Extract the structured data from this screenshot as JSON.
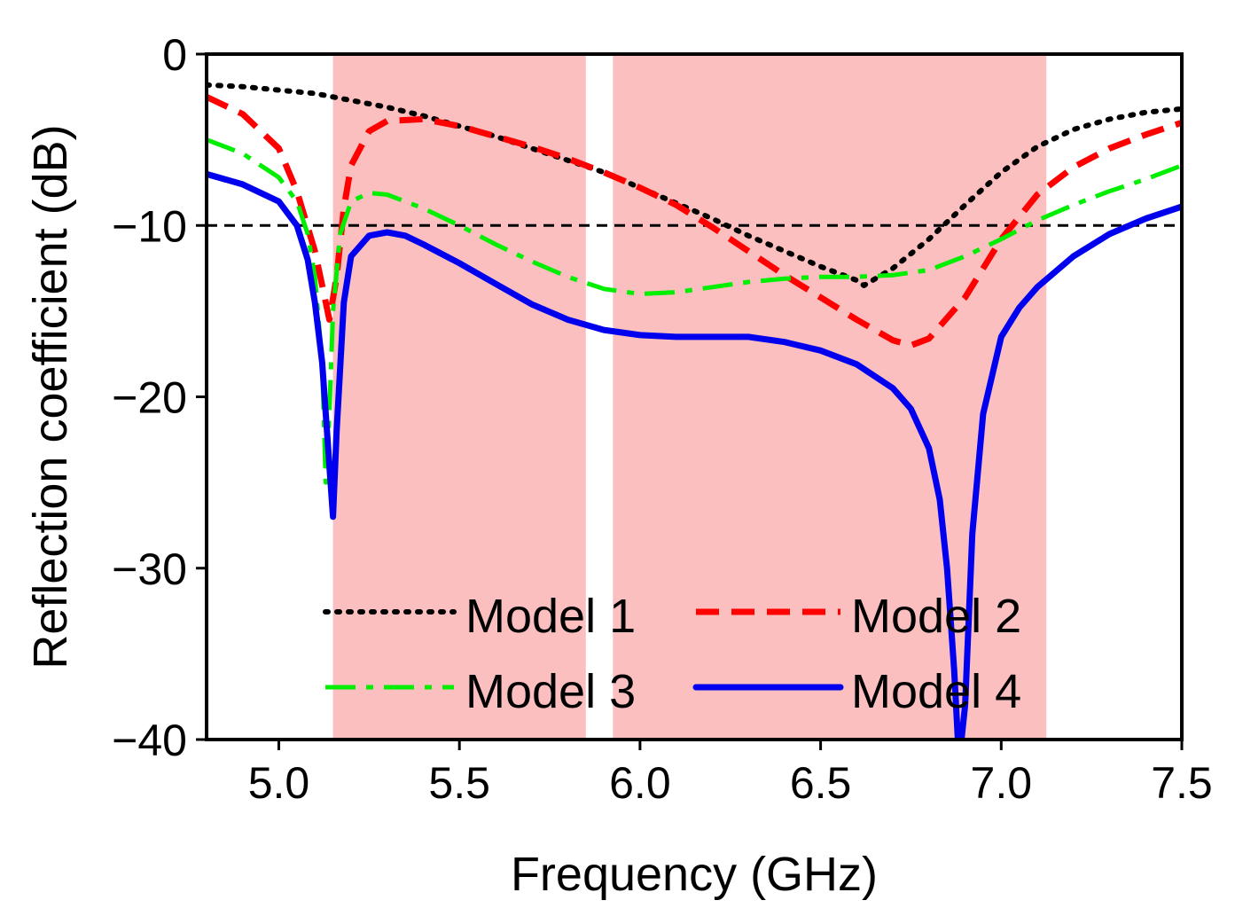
{
  "chart_data": {
    "type": "line",
    "xlabel": "Frequency (GHz)",
    "ylabel": "Reflection coefficient (dB)",
    "xlim": [
      4.8,
      7.5
    ],
    "ylim": [
      -40,
      0
    ],
    "xticks": [
      5.0,
      5.5,
      6.0,
      6.5,
      7.0,
      7.5
    ],
    "xtick_labels": [
      "5.0",
      "5.5",
      "6.0",
      "6.5",
      "7.0",
      "7.5"
    ],
    "yticks": [
      0,
      -10,
      -20,
      -30,
      -40
    ],
    "ytick_labels": [
      "0",
      "−10",
      "−20",
      "−30",
      "−40"
    ],
    "threshold": -10,
    "shaded_bands": [
      [
        5.15,
        5.85
      ],
      [
        5.925,
        7.125
      ]
    ],
    "legend_position": "lower-center",
    "colors": {
      "band": "#fbbfbf",
      "model1": "#000000",
      "model2": "#ff0000",
      "model3": "#00ee00",
      "model4": "#0000ee"
    },
    "series": [
      {
        "name": "Model 1",
        "style": "dotted",
        "x": [
          4.8,
          4.9,
          5.0,
          5.1,
          5.2,
          5.3,
          5.4,
          5.5,
          5.6,
          5.7,
          5.8,
          5.9,
          6.0,
          6.1,
          6.2,
          6.3,
          6.4,
          6.5,
          6.6,
          6.62,
          6.7,
          6.8,
          6.9,
          7.0,
          7.1,
          7.2,
          7.3,
          7.4,
          7.5
        ],
        "y": [
          -1.8,
          -1.9,
          -2.1,
          -2.3,
          -2.7,
          -3.1,
          -3.6,
          -4.2,
          -4.8,
          -5.5,
          -6.2,
          -6.9,
          -7.8,
          -8.7,
          -9.6,
          -10.6,
          -11.5,
          -12.4,
          -13.2,
          -13.5,
          -12.5,
          -10.8,
          -8.8,
          -6.9,
          -5.4,
          -4.4,
          -3.8,
          -3.4,
          -3.2
        ]
      },
      {
        "name": "Model 2",
        "style": "dashed",
        "x": [
          4.8,
          4.9,
          5.0,
          5.05,
          5.1,
          5.12,
          5.14,
          5.16,
          5.18,
          5.2,
          5.25,
          5.3,
          5.4,
          5.5,
          5.6,
          5.7,
          5.8,
          5.9,
          6.0,
          6.1,
          6.2,
          6.3,
          6.4,
          6.5,
          6.6,
          6.7,
          6.75,
          6.8,
          6.9,
          7.0,
          7.1,
          7.2,
          7.3,
          7.4,
          7.5
        ],
        "y": [
          -2.5,
          -3.5,
          -5.5,
          -8.0,
          -11.5,
          -13.5,
          -15.5,
          -13.0,
          -9.0,
          -6.5,
          -4.5,
          -3.9,
          -3.8,
          -4.2,
          -4.8,
          -5.4,
          -6.1,
          -6.9,
          -7.8,
          -8.8,
          -10.1,
          -11.5,
          -12.9,
          -14.2,
          -15.5,
          -16.7,
          -17.0,
          -16.6,
          -14.2,
          -10.8,
          -8.2,
          -6.6,
          -5.5,
          -4.7,
          -4.0
        ]
      },
      {
        "name": "Model 3",
        "style": "dashdot",
        "x": [
          4.8,
          4.9,
          5.0,
          5.05,
          5.08,
          5.1,
          5.12,
          5.13,
          5.14,
          5.15,
          5.17,
          5.2,
          5.25,
          5.3,
          5.4,
          5.5,
          5.6,
          5.7,
          5.8,
          5.9,
          6.0,
          6.1,
          6.2,
          6.3,
          6.4,
          6.5,
          6.6,
          6.7,
          6.8,
          6.9,
          7.0,
          7.1,
          7.2,
          7.3,
          7.4,
          7.5
        ],
        "y": [
          -5.0,
          -5.8,
          -7.2,
          -8.6,
          -10.5,
          -13.0,
          -18.0,
          -25.0,
          -21.0,
          -15.0,
          -10.5,
          -8.6,
          -8.1,
          -8.2,
          -9.0,
          -10.0,
          -11.1,
          -12.1,
          -13.0,
          -13.7,
          -14.0,
          -13.9,
          -13.6,
          -13.3,
          -13.1,
          -13.0,
          -13.0,
          -12.9,
          -12.6,
          -11.8,
          -10.8,
          -9.7,
          -8.8,
          -8.0,
          -7.3,
          -6.5
        ]
      },
      {
        "name": "Model 4",
        "style": "solid",
        "x": [
          4.8,
          4.9,
          5.0,
          5.05,
          5.08,
          5.1,
          5.12,
          5.14,
          5.15,
          5.16,
          5.18,
          5.2,
          5.25,
          5.3,
          5.35,
          5.4,
          5.5,
          5.6,
          5.7,
          5.8,
          5.9,
          6.0,
          6.1,
          6.2,
          6.3,
          6.4,
          6.5,
          6.6,
          6.7,
          6.75,
          6.8,
          6.83,
          6.85,
          6.87,
          6.88,
          6.89,
          6.9,
          6.92,
          6.95,
          7.0,
          7.05,
          7.1,
          7.2,
          7.3,
          7.4,
          7.5
        ],
        "y": [
          -7.0,
          -7.6,
          -8.6,
          -10.0,
          -12.0,
          -14.5,
          -18.0,
          -24.0,
          -27.0,
          -22.0,
          -14.5,
          -11.8,
          -10.6,
          -10.4,
          -10.6,
          -11.1,
          -12.2,
          -13.4,
          -14.6,
          -15.5,
          -16.1,
          -16.4,
          -16.5,
          -16.5,
          -16.5,
          -16.8,
          -17.3,
          -18.1,
          -19.5,
          -20.7,
          -23.0,
          -26.0,
          -30.0,
          -36.0,
          -40.0,
          -40.0,
          -38.0,
          -28.0,
          -21.0,
          -16.5,
          -14.8,
          -13.6,
          -11.8,
          -10.5,
          -9.6,
          -8.9
        ]
      }
    ]
  }
}
